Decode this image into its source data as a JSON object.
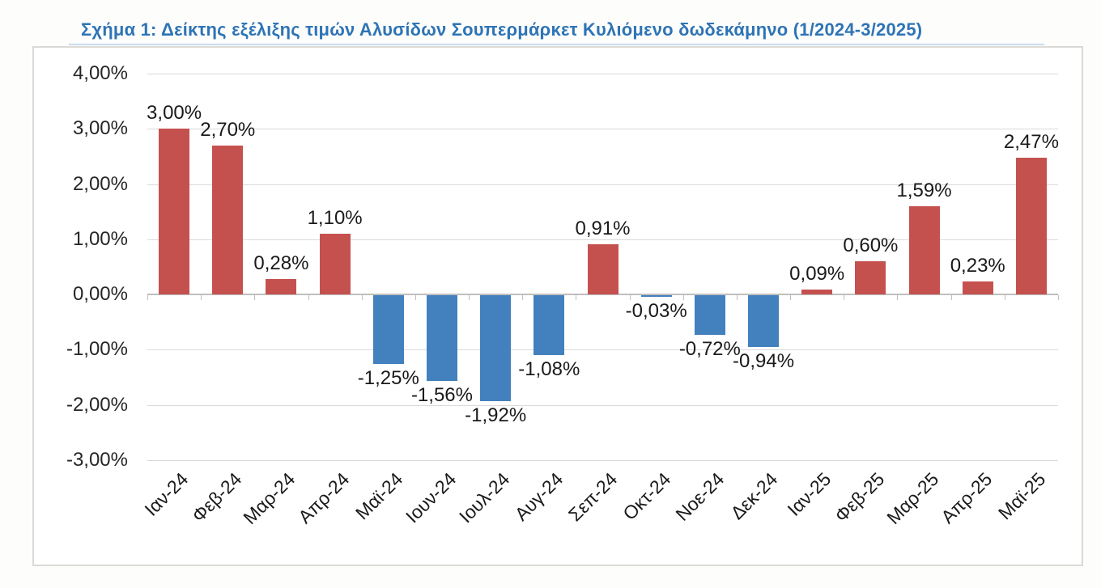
{
  "figure": {
    "caption_label": "Σχήμα 1:"
  },
  "chart_data": {
    "type": "bar",
    "title": "Σχήμα 1: Δείκτης εξέλιξης τιμών Αλυσίδων Σουπερμάρκετ Κυλιόμενο δωδεκάμηνο (1/2024-3/2025)",
    "xlabel": "",
    "ylabel": "",
    "ylim": [
      -3,
      4
    ],
    "grid": true,
    "legend": "none",
    "decimal_separator": ",",
    "categories": [
      "Ιαν-24",
      "Φεβ-24",
      "Μαρ-24",
      "Απρ-24",
      "Μαϊ-24",
      "Ιουν-24",
      "Ιουλ-24",
      "Αυγ-24",
      "Σεπ-24",
      "Οκτ-24",
      "Νοε-24",
      "Δεκ-24",
      "Ιαν-25",
      "Φεβ-25",
      "Μαρ-25",
      "Απρ-25",
      "Μαϊ-25"
    ],
    "values": [
      3.0,
      2.7,
      0.28,
      1.1,
      -1.25,
      -1.56,
      -1.92,
      -1.08,
      0.91,
      -0.03,
      -0.72,
      -0.94,
      0.09,
      0.6,
      1.59,
      0.23,
      2.47
    ],
    "value_labels": [
      "3,00%",
      "2,70%",
      "0,28%",
      "1,10%",
      "-1,25%",
      "-1,56%",
      "-1,92%",
      "-1,08%",
      "0,91%",
      "-0,03%",
      "-0,72%",
      "-0,94%",
      "0,09%",
      "0,60%",
      "1,59%",
      "0,23%",
      "2,47%"
    ],
    "y_ticks": [
      {
        "value": 4,
        "label": "4,00%"
      },
      {
        "value": 3,
        "label": "3,00%"
      },
      {
        "value": 2,
        "label": "2,00%"
      },
      {
        "value": 1,
        "label": "1,00%"
      },
      {
        "value": 0,
        "label": "0,00%"
      },
      {
        "value": -1,
        "label": "-1,00%"
      },
      {
        "value": -2,
        "label": "-2,00%"
      },
      {
        "value": -3,
        "label": "-3,00%"
      }
    ],
    "colors": {
      "positive_bar": "#c5514f",
      "negative_bar": "#4380be",
      "title_text": "#2E74B5",
      "gridline": "#d9d9d9",
      "axis_line": "#bfbfbf",
      "label_text": "#1a1a1a"
    }
  }
}
